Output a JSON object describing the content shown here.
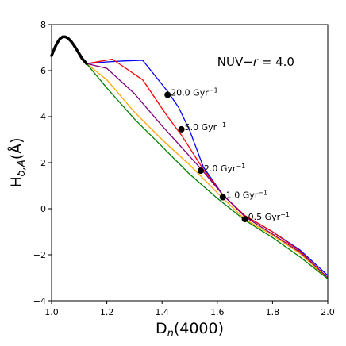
{
  "chart_data": {
    "type": "line",
    "title": "",
    "xlabel": "D",
    "xlabel_sub": "n",
    "xlabel_tail": "(4000)",
    "ylabel": "H",
    "ylabel_sub": "δ,A",
    "ylabel_tail": "(Å)",
    "xlim": [
      1.0,
      2.0
    ],
    "ylim": [
      -4,
      8
    ],
    "xticks": [
      1.0,
      1.2,
      1.4,
      1.6,
      1.8,
      2.0
    ],
    "xtick_labels": [
      "1.0",
      "1.2",
      "1.4",
      "1.6",
      "1.8",
      "2.0"
    ],
    "yticks": [
      -4,
      -2,
      0,
      2,
      4,
      6,
      8
    ],
    "ytick_labels": [
      "−4",
      "−2",
      "0",
      "2",
      "4",
      "6",
      "8"
    ],
    "grid": false,
    "annotation": {
      "prefix": "NUV−",
      "var": "r",
      "suffix": " = 4.0",
      "x": 1.6,
      "y": 6.2
    },
    "base_track": {
      "name": "",
      "color": "#000000",
      "x": [
        1.0,
        1.01,
        1.02,
        1.03,
        1.04,
        1.05,
        1.06,
        1.07,
        1.08,
        1.09,
        1.1,
        1.11,
        1.127
      ],
      "y": [
        6.65,
        6.95,
        7.2,
        7.38,
        7.47,
        7.47,
        7.4,
        7.28,
        7.12,
        6.93,
        6.73,
        6.53,
        6.3
      ]
    },
    "series": [
      {
        "name": "",
        "color": "#0000ff",
        "x": [
          1.127,
          1.2,
          1.26,
          1.33,
          1.42,
          1.46,
          1.5,
          1.55,
          1.62,
          1.7,
          1.8,
          1.9,
          2.0
        ],
        "y": [
          6.3,
          6.38,
          6.42,
          6.45,
          5.1,
          4.4,
          3.4,
          1.8,
          0.6,
          -0.3,
          -1.0,
          -1.8,
          -2.9
        ]
      },
      {
        "name": "",
        "color": "#ff0000",
        "x": [
          1.127,
          1.22,
          1.33,
          1.42,
          1.47,
          1.55,
          1.62,
          1.7,
          1.8,
          1.9,
          2.0
        ],
        "y": [
          6.3,
          6.5,
          5.6,
          4.0,
          3.2,
          1.7,
          0.6,
          -0.3,
          -1.0,
          -1.85,
          -3.0
        ]
      },
      {
        "name": "",
        "color": "#800080",
        "x": [
          1.127,
          1.2,
          1.3,
          1.4,
          1.54,
          1.62,
          1.7,
          1.8,
          1.9,
          2.0
        ],
        "y": [
          6.3,
          6.1,
          5.0,
          3.6,
          1.75,
          0.6,
          -0.35,
          -1.1,
          -1.9,
          -3.0
        ]
      },
      {
        "name": "",
        "color": "#ffa500",
        "x": [
          1.127,
          1.2,
          1.3,
          1.4,
          1.5,
          1.62,
          1.7,
          1.8,
          1.9,
          2.0
        ],
        "y": [
          6.3,
          5.6,
          4.2,
          3.0,
          1.9,
          0.45,
          -0.45,
          -1.15,
          -1.95,
          -3.05
        ]
      },
      {
        "name": "",
        "color": "#008000",
        "x": [
          1.127,
          1.2,
          1.3,
          1.4,
          1.5,
          1.6,
          1.7,
          1.8,
          1.9,
          2.0
        ],
        "y": [
          6.3,
          5.25,
          3.9,
          2.7,
          1.5,
          0.45,
          -0.5,
          -1.25,
          -2.1,
          -3.05
        ]
      }
    ],
    "markers": [
      {
        "x": 1.42,
        "y": 4.95,
        "label": "20.0 Gyr",
        "exp": "−1"
      },
      {
        "x": 1.47,
        "y": 3.45,
        "label": "5.0 Gyr",
        "exp": "−1"
      },
      {
        "x": 1.54,
        "y": 1.65,
        "label": "2.0 Gyr",
        "exp": "−1"
      },
      {
        "x": 1.62,
        "y": 0.5,
        "label": "1.0 Gyr",
        "exp": "−1"
      },
      {
        "x": 1.7,
        "y": -0.45,
        "label": "0.5 Gyr",
        "exp": "−1"
      }
    ]
  }
}
